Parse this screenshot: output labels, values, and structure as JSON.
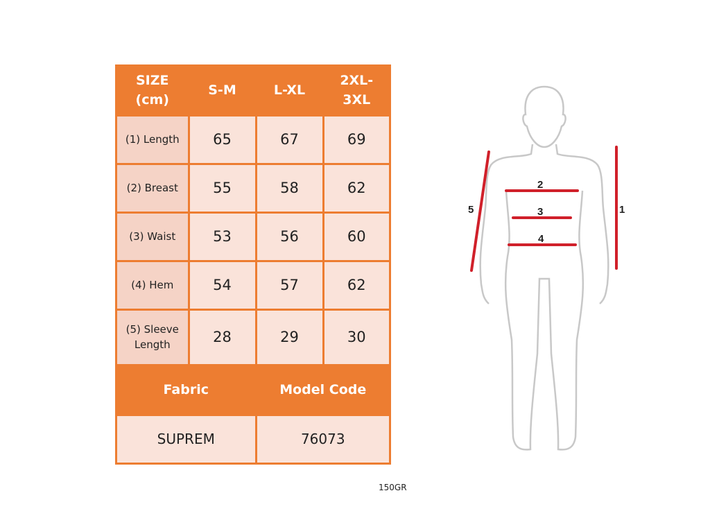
{
  "table": {
    "headers": [
      "SIZE (cm)",
      "S-M",
      "L-XL",
      "2XL-3XL"
    ],
    "rows": [
      {
        "label": "(1) Length",
        "values": [
          "65",
          "67",
          "69"
        ]
      },
      {
        "label": "(2) Breast",
        "values": [
          "55",
          "58",
          "62"
        ]
      },
      {
        "label": "(3) Waist",
        "values": [
          "53",
          "56",
          "60"
        ]
      },
      {
        "label": "(4) Hem",
        "values": [
          "54",
          "57",
          "62"
        ]
      },
      {
        "label": "(5) Sleeve Length",
        "values": [
          "28",
          "29",
          "30"
        ]
      }
    ],
    "footer_headers": [
      "Fabric",
      "Model Code"
    ],
    "footer_values": [
      "SUPREM",
      "76073"
    ]
  },
  "figure": {
    "labels": [
      "1",
      "2",
      "3",
      "4",
      "5"
    ],
    "line_color": "#D0202A",
    "outline_color": "#C8C8C8"
  },
  "caption": "150GR",
  "colors": {
    "header": "#ED7D31",
    "cell": "#FAE3DA",
    "label_cell": "#F5D3C6"
  }
}
